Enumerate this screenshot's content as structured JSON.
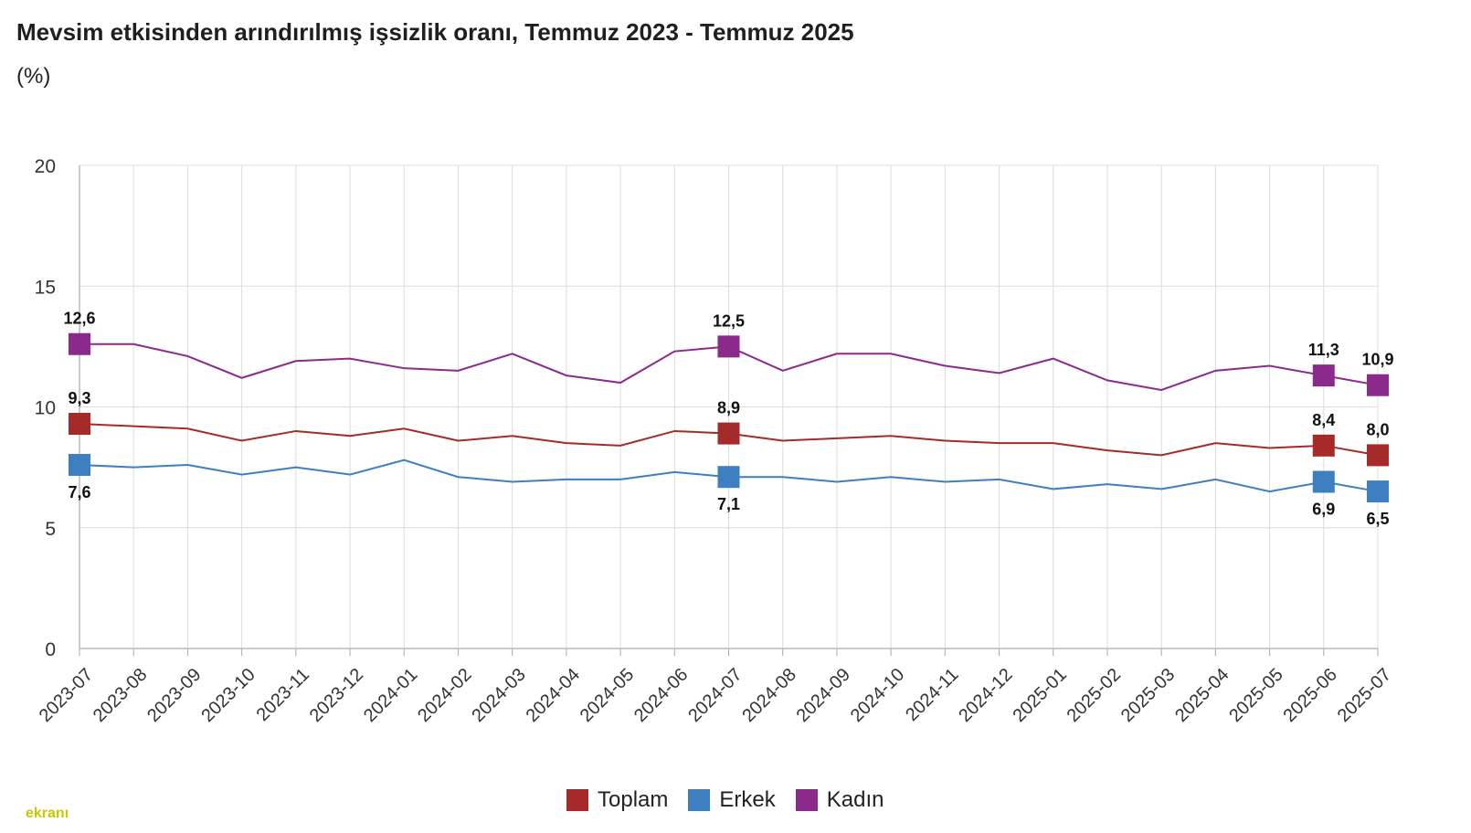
{
  "header": {
    "title": "Mevsim etkisinden arındırılmış işsizlik oranı, Temmuz 2023 - Temmuz 2025",
    "unit": "(%)"
  },
  "watermark": {
    "text": "ekranı"
  },
  "chart_data": {
    "type": "line",
    "title": "Mevsim etkisinden arındırılmış işsizlik oranı, Temmuz 2023 - Temmuz 2025",
    "ylabel": "(%)",
    "xlabel": "",
    "ylim": [
      0,
      20
    ],
    "yticks": [
      0,
      5,
      10,
      15,
      20
    ],
    "grid": true,
    "legend_position": "bottom",
    "categories": [
      "2023-07",
      "2023-08",
      "2023-09",
      "2023-10",
      "2023-11",
      "2023-12",
      "2024-01",
      "2024-02",
      "2024-03",
      "2024-04",
      "2024-05",
      "2024-06",
      "2024-07",
      "2024-08",
      "2024-09",
      "2024-10",
      "2024-11",
      "2024-12",
      "2025-01",
      "2025-02",
      "2025-03",
      "2025-04",
      "2025-05",
      "2025-06",
      "2025-07"
    ],
    "series": [
      {
        "name": "Toplam",
        "color": "#a52a2a",
        "values": [
          9.3,
          9.2,
          9.1,
          8.6,
          9.0,
          8.8,
          9.1,
          8.6,
          8.8,
          8.5,
          8.4,
          9.0,
          8.9,
          8.6,
          8.7,
          8.8,
          8.6,
          8.5,
          8.5,
          8.2,
          8.0,
          8.5,
          8.3,
          8.4,
          8.0
        ],
        "labels": {
          "0": "9,3",
          "12": "8,9",
          "23": "8,4",
          "24": "8,0"
        },
        "label_side": "above"
      },
      {
        "name": "Erkek",
        "color": "#3d7fc1",
        "values": [
          7.6,
          7.5,
          7.6,
          7.2,
          7.5,
          7.2,
          7.8,
          7.1,
          6.9,
          7.0,
          7.0,
          7.3,
          7.1,
          7.1,
          6.9,
          7.1,
          6.9,
          7.0,
          6.6,
          6.8,
          6.6,
          7.0,
          6.5,
          6.9,
          6.5
        ],
        "labels": {
          "0": "7,6",
          "12": "7,1",
          "23": "6,9",
          "24": "6,5"
        },
        "label_side": "below"
      },
      {
        "name": "Kadın",
        "color": "#8b2a8b",
        "values": [
          12.6,
          12.6,
          12.1,
          11.2,
          11.9,
          12.0,
          11.6,
          11.5,
          12.2,
          11.3,
          11.0,
          12.3,
          12.5,
          11.5,
          12.2,
          12.2,
          11.7,
          11.4,
          12.0,
          11.1,
          10.7,
          11.5,
          11.7,
          11.3,
          10.9
        ],
        "labels": {
          "0": "12,6",
          "12": "12,5",
          "23": "11,3",
          "24": "10,9"
        },
        "label_side": "above"
      }
    ]
  }
}
